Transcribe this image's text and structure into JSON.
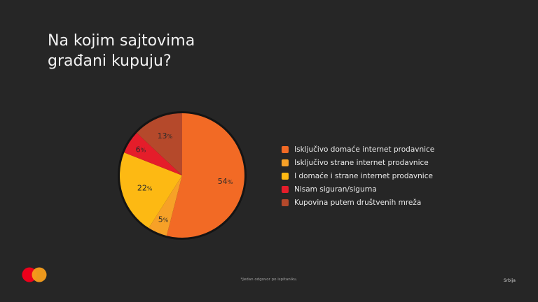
{
  "page": {
    "title_lines": [
      "Na kojim sajtovima",
      "građani kupuju?"
    ],
    "footnote": "*Jedan odgovor po ispitaniku.",
    "country": "Srbija"
  },
  "logo": {
    "icon": "mastercard-logo-icon",
    "colors": {
      "left": "#eb001b",
      "right": "#f79e1b"
    }
  },
  "chart_data": {
    "type": "pie",
    "unit": "%",
    "legend_position": "right",
    "slices": [
      {
        "label": "Isključivo domaće internet prodavnice",
        "value": 54,
        "color": "#f26a25"
      },
      {
        "label": "Isključivo strane internet prodavnice",
        "value": 5,
        "color": "#f7a127"
      },
      {
        "label": "I domaće i strane internet prodavnice",
        "value": 22,
        "color": "#fdb913"
      },
      {
        "label": "Nisam siguran/sigurna",
        "value": 6,
        "color": "#e51d2a"
      },
      {
        "label": "Kupovina putem društvenih mreža",
        "value": 13,
        "color": "#b5492b"
      }
    ]
  }
}
